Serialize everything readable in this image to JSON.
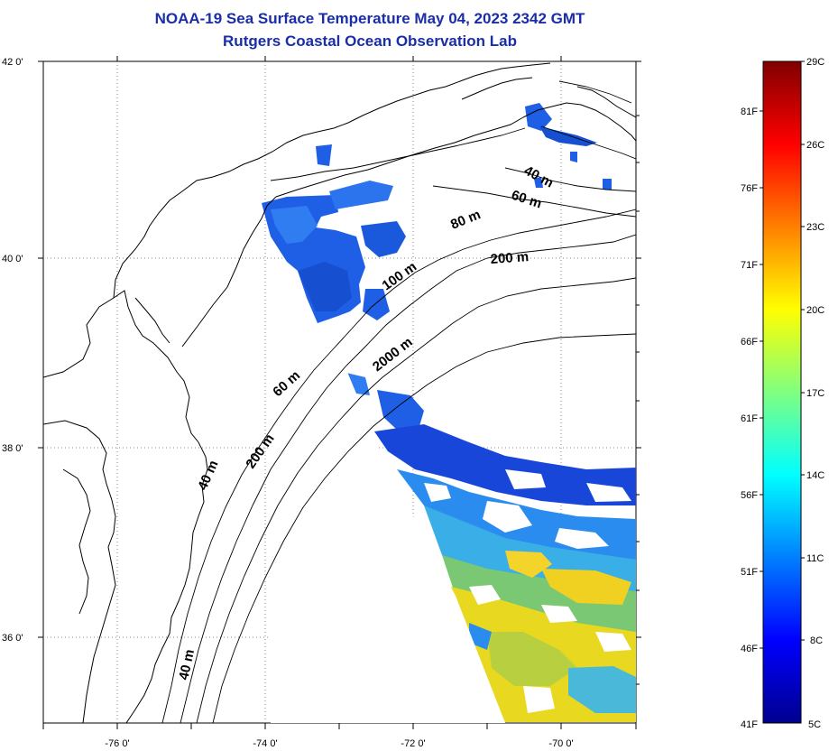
{
  "title": {
    "line1": "NOAA-19 Sea Surface Temperature May 04, 2023 2342 GMT",
    "line2": "Rutgers Coastal Ocean Observation Lab"
  },
  "map": {
    "lat_labels": [
      "42 0'",
      "40 0'",
      "38 0'",
      "36 0'"
    ],
    "lon_labels": [
      "-76 0'",
      "-74 0'",
      "-72 0'",
      "-70 0'"
    ],
    "lat_range": [
      35.0,
      42.0
    ],
    "lon_range": [
      -77.0,
      -69.0
    ],
    "contour_labels": [
      {
        "text": "40 m",
        "name": "contour-label-40m-north"
      },
      {
        "text": "60 m",
        "name": "contour-label-60m-north"
      },
      {
        "text": "80 m",
        "name": "contour-label-80m"
      },
      {
        "text": "200 m",
        "name": "contour-label-200m-north"
      },
      {
        "text": "100 m",
        "name": "contour-label-100m"
      },
      {
        "text": "2000 m",
        "name": "contour-label-2000m"
      },
      {
        "text": "60 m",
        "name": "contour-label-60m-south"
      },
      {
        "text": "200 m",
        "name": "contour-label-200m-south"
      },
      {
        "text": "40 m",
        "name": "contour-label-40m-mid"
      },
      {
        "text": "40 m",
        "name": "contour-label-40m-south"
      }
    ]
  },
  "colorbar": {
    "celsius_labels": [
      "29C",
      "26C",
      "23C",
      "20C",
      "17C",
      "14C",
      "11C",
      "8C",
      "5C"
    ],
    "fahrenheit_labels": [
      "81F",
      "76F",
      "71F",
      "66F",
      "61F",
      "56F",
      "51F",
      "46F",
      "41F"
    ],
    "range_c": [
      5,
      29
    ],
    "colormap": "jet"
  },
  "colors": {
    "title": "#1a2ea8",
    "cold": "#00008f",
    "cool": "#1e5fe6",
    "mild": "#2aa0f0",
    "warm": "#f0d020"
  }
}
